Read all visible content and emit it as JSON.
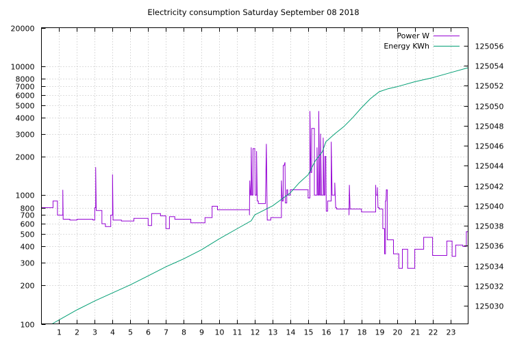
{
  "chart_data": {
    "type": "line",
    "title": "Electricity consumption Saturday September 08 2018",
    "xlabel": "",
    "ylabel": "",
    "x_ticks": [
      1,
      2,
      3,
      4,
      5,
      6,
      7,
      8,
      9,
      10,
      11,
      12,
      13,
      14,
      15,
      16,
      17,
      18,
      19,
      20,
      21,
      22,
      23
    ],
    "xlim": [
      0,
      24
    ],
    "y_left": {
      "scale": "log",
      "lim": [
        100,
        20000
      ],
      "ticks": [
        100,
        200,
        300,
        400,
        500,
        600,
        700,
        800,
        1000,
        2000,
        3000,
        4000,
        5000,
        6000,
        7000,
        8000,
        10000,
        20000
      ]
    },
    "y_right": {
      "scale": "linear",
      "lim": [
        125028.2,
        125057.8
      ],
      "ticks": [
        125030,
        125032,
        125034,
        125036,
        125038,
        125040,
        125042,
        125044,
        125046,
        125048,
        125050,
        125052,
        125054,
        125056
      ]
    },
    "grid": true,
    "legend_position": "top-right",
    "series": [
      {
        "name": "Power W",
        "axis": "left",
        "color": "#9400d3",
        "points": [
          [
            0.0,
            800
          ],
          [
            0.65,
            800
          ],
          [
            0.65,
            900
          ],
          [
            0.9,
            900
          ],
          [
            0.9,
            700
          ],
          [
            1.2,
            700
          ],
          [
            1.2,
            1100
          ],
          [
            1.22,
            650
          ],
          [
            1.6,
            650
          ],
          [
            1.6,
            640
          ],
          [
            2.0,
            640
          ],
          [
            2.0,
            650
          ],
          [
            2.9,
            650
          ],
          [
            2.9,
            640
          ],
          [
            3.0,
            640
          ],
          [
            3.0,
            800
          ],
          [
            3.05,
            800
          ],
          [
            3.05,
            1650
          ],
          [
            3.08,
            760
          ],
          [
            3.4,
            760
          ],
          [
            3.4,
            600
          ],
          [
            3.6,
            600
          ],
          [
            3.6,
            570
          ],
          [
            3.9,
            570
          ],
          [
            3.9,
            700
          ],
          [
            4.0,
            700
          ],
          [
            4.0,
            1450
          ],
          [
            4.03,
            640
          ],
          [
            4.5,
            640
          ],
          [
            4.5,
            630
          ],
          [
            5.2,
            630
          ],
          [
            5.2,
            660
          ],
          [
            6.0,
            660
          ],
          [
            6.0,
            580
          ],
          [
            6.2,
            580
          ],
          [
            6.2,
            720
          ],
          [
            6.7,
            720
          ],
          [
            6.7,
            690
          ],
          [
            7.0,
            690
          ],
          [
            7.0,
            550
          ],
          [
            7.2,
            550
          ],
          [
            7.2,
            680
          ],
          [
            7.5,
            680
          ],
          [
            7.5,
            650
          ],
          [
            8.4,
            650
          ],
          [
            8.4,
            610
          ],
          [
            9.2,
            610
          ],
          [
            9.2,
            670
          ],
          [
            9.6,
            670
          ],
          [
            9.6,
            820
          ],
          [
            9.9,
            820
          ],
          [
            9.9,
            770
          ],
          [
            11.7,
            770
          ],
          [
            11.7,
            700
          ],
          [
            11.72,
            1300
          ],
          [
            11.76,
            1000
          ],
          [
            11.8,
            1000
          ],
          [
            11.8,
            2350
          ],
          [
            11.85,
            1000
          ],
          [
            11.9,
            1000
          ],
          [
            11.9,
            2300
          ],
          [
            12.0,
            2300
          ],
          [
            12.02,
            1000
          ],
          [
            12.1,
            1000
          ],
          [
            12.1,
            2200
          ],
          [
            12.14,
            900
          ],
          [
            12.2,
            900
          ],
          [
            12.2,
            860
          ],
          [
            12.6,
            860
          ],
          [
            12.65,
            2500
          ],
          [
            12.7,
            640
          ],
          [
            12.9,
            640
          ],
          [
            12.9,
            670
          ],
          [
            13.5,
            670
          ],
          [
            13.5,
            1300
          ],
          [
            13.55,
            900
          ],
          [
            13.6,
            900
          ],
          [
            13.6,
            1700
          ],
          [
            13.65,
            1700
          ],
          [
            13.7,
            1800
          ],
          [
            13.72,
            870
          ],
          [
            13.8,
            870
          ],
          [
            13.8,
            1100
          ],
          [
            13.85,
            1100
          ],
          [
            13.85,
            1000
          ],
          [
            14.0,
            1000
          ],
          [
            14.0,
            1100
          ],
          [
            15.0,
            1100
          ],
          [
            15.0,
            950
          ],
          [
            15.1,
            950
          ],
          [
            15.1,
            4500
          ],
          [
            15.15,
            1500
          ],
          [
            15.2,
            1500
          ],
          [
            15.2,
            3300
          ],
          [
            15.35,
            3300
          ],
          [
            15.35,
            1000
          ],
          [
            15.5,
            1000
          ],
          [
            15.5,
            2350
          ],
          [
            15.55,
            1000
          ],
          [
            15.6,
            1000
          ],
          [
            15.6,
            4500
          ],
          [
            15.65,
            1000
          ],
          [
            15.7,
            1000
          ],
          [
            15.7,
            3000
          ],
          [
            15.75,
            1000
          ],
          [
            15.85,
            1000
          ],
          [
            15.85,
            2800
          ],
          [
            15.9,
            1000
          ],
          [
            15.95,
            1000
          ],
          [
            15.95,
            2000
          ],
          [
            16.0,
            2000
          ],
          [
            16.02,
            750
          ],
          [
            16.1,
            750
          ],
          [
            16.1,
            900
          ],
          [
            16.3,
            900
          ],
          [
            16.3,
            2600
          ],
          [
            16.35,
            1000
          ],
          [
            16.5,
            1000
          ],
          [
            16.5,
            1250
          ],
          [
            16.55,
            800
          ],
          [
            16.6,
            800
          ],
          [
            16.6,
            780
          ],
          [
            17.3,
            780
          ],
          [
            17.3,
            700
          ],
          [
            17.32,
            1200
          ],
          [
            17.36,
            780
          ],
          [
            18.0,
            780
          ],
          [
            18.0,
            740
          ],
          [
            18.8,
            740
          ],
          [
            18.8,
            1200
          ],
          [
            18.82,
            1000
          ],
          [
            18.9,
            1000
          ],
          [
            18.9,
            1150
          ],
          [
            18.93,
            800
          ],
          [
            19.0,
            800
          ],
          [
            19.0,
            780
          ],
          [
            19.2,
            780
          ],
          [
            19.2,
            550
          ],
          [
            19.3,
            550
          ],
          [
            19.3,
            350
          ],
          [
            19.35,
            350
          ],
          [
            19.35,
            900
          ],
          [
            19.38,
            900
          ],
          [
            19.4,
            1100
          ],
          [
            19.45,
            1100
          ],
          [
            19.45,
            450
          ],
          [
            19.8,
            450
          ],
          [
            19.8,
            350
          ],
          [
            20.1,
            350
          ],
          [
            20.1,
            270
          ],
          [
            20.3,
            270
          ],
          [
            20.3,
            380
          ],
          [
            20.6,
            380
          ],
          [
            20.6,
            270
          ],
          [
            21.0,
            270
          ],
          [
            21.0,
            380
          ],
          [
            21.5,
            380
          ],
          [
            21.5,
            470
          ],
          [
            22.0,
            470
          ],
          [
            22.0,
            340
          ],
          [
            22.8,
            340
          ],
          [
            22.8,
            440
          ],
          [
            23.1,
            440
          ],
          [
            23.1,
            335
          ],
          [
            23.3,
            335
          ],
          [
            23.3,
            410
          ],
          [
            23.7,
            410
          ],
          [
            23.7,
            400
          ],
          [
            23.9,
            400
          ],
          [
            23.9,
            520
          ],
          [
            24.0,
            520
          ]
        ]
      },
      {
        "name": "Energy KWh",
        "axis": "right",
        "color": "#009e73",
        "points": [
          [
            0.6,
            125028.2
          ],
          [
            1.0,
            125028.6
          ],
          [
            2.0,
            125029.6
          ],
          [
            3.0,
            125030.5
          ],
          [
            4.0,
            125031.3
          ],
          [
            5.0,
            125032.1
          ],
          [
            6.0,
            125033.0
          ],
          [
            7.0,
            125033.9
          ],
          [
            8.0,
            125034.7
          ],
          [
            9.0,
            125035.6
          ],
          [
            10.0,
            125036.7
          ],
          [
            11.0,
            125037.7
          ],
          [
            11.8,
            125038.5
          ],
          [
            12.0,
            125039.1
          ],
          [
            13.0,
            125040.0
          ],
          [
            14.0,
            125041.3
          ],
          [
            14.5,
            125042.3
          ],
          [
            15.0,
            125043.1
          ],
          [
            15.4,
            125044.5
          ],
          [
            15.8,
            125045.4
          ],
          [
            16.0,
            125046.4
          ],
          [
            16.5,
            125047.2
          ],
          [
            17.0,
            125047.9
          ],
          [
            17.5,
            125048.8
          ],
          [
            18.0,
            125049.8
          ],
          [
            18.5,
            125050.7
          ],
          [
            19.0,
            125051.4
          ],
          [
            19.5,
            125051.7
          ],
          [
            20.0,
            125051.9
          ],
          [
            21.0,
            125052.4
          ],
          [
            22.0,
            125052.8
          ],
          [
            23.0,
            125053.3
          ],
          [
            24.0,
            125053.8
          ]
        ]
      }
    ]
  }
}
